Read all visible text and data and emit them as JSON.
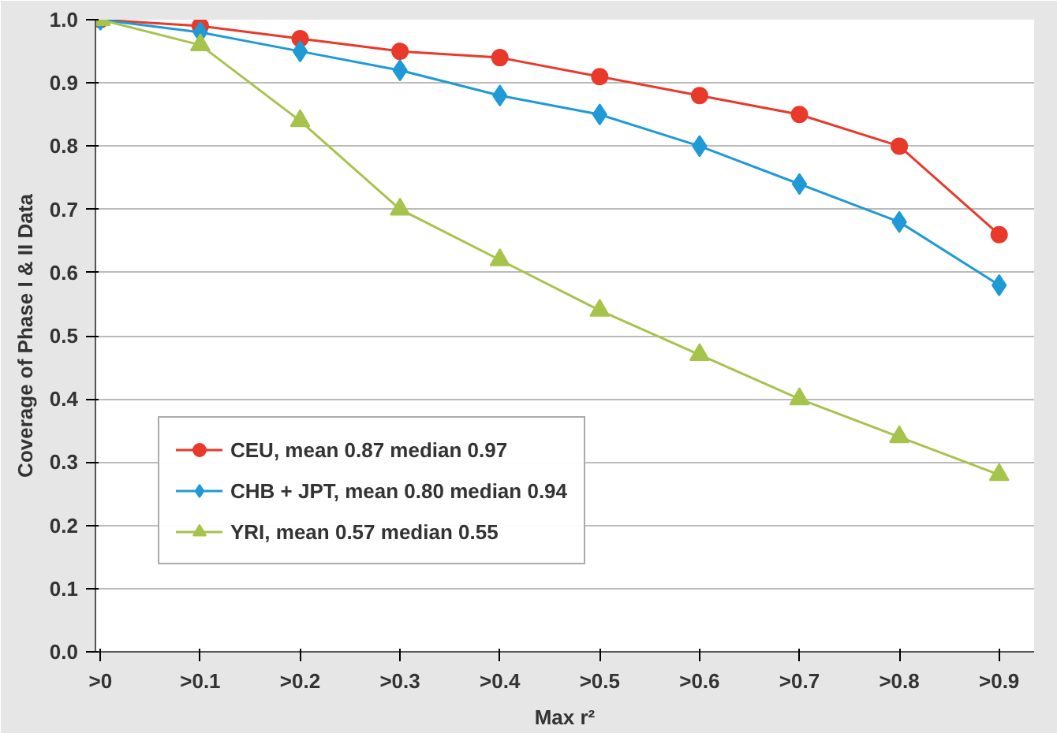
{
  "chart_data": {
    "type": "line",
    "xlabel": "Max r²",
    "ylabel": "Coverage of Phase I & II Data",
    "categories": [
      ">0",
      ">0.1",
      ">0.2",
      ">0.3",
      ">0.4",
      ">0.5",
      ">0.6",
      ">0.7",
      ">0.8",
      ">0.9"
    ],
    "series": [
      {
        "name": "CEU, mean 0.87 median 0.97",
        "color": "#e8392a",
        "marker": "circle",
        "values": [
          1.0,
          0.99,
          0.97,
          0.95,
          0.94,
          0.91,
          0.88,
          0.85,
          0.8,
          0.66
        ]
      },
      {
        "name": "CHB + JPT, mean 0.80 median 0.94",
        "color": "#1f9ad6",
        "marker": "diamond",
        "values": [
          1.0,
          0.98,
          0.95,
          0.92,
          0.88,
          0.85,
          0.8,
          0.74,
          0.68,
          0.58
        ]
      },
      {
        "name": "YRI, mean 0.57 median 0.55",
        "color": "#a6c34c",
        "marker": "triangle",
        "values": [
          1.0,
          0.96,
          0.84,
          0.7,
          0.62,
          0.54,
          0.47,
          0.4,
          0.34,
          0.28
        ]
      }
    ],
    "ylim": [
      0,
      1.0
    ],
    "yticks": [
      {
        "value": 0,
        "label": "0.0"
      },
      0.1,
      0.2,
      0.3,
      0.4,
      0.5,
      0.6,
      0.7,
      0.8,
      0.9,
      {
        "value": 1,
        "label": "1.0"
      }
    ],
    "grid": "y",
    "legend": "bottom left"
  }
}
